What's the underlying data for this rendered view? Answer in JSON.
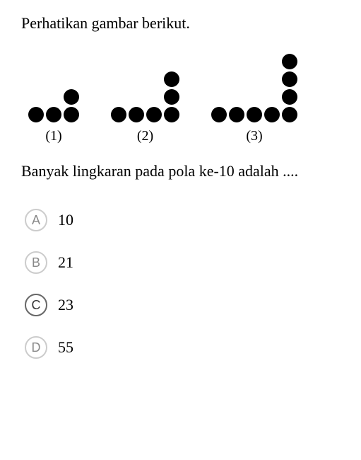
{
  "question": {
    "intro": "Perhatikan gambar berikut.",
    "statement": "Banyak lingkaran pada pola ke-10 adalah ...."
  },
  "patterns": [
    {
      "label": "(1)",
      "horizontal": 2,
      "vertical": 1
    },
    {
      "label": "(2)",
      "horizontal": 3,
      "vertical": 2
    },
    {
      "label": "(3)",
      "horizontal": 4,
      "vertical": 3
    }
  ],
  "dot_color": "#000000",
  "dot_size": 22,
  "options": [
    {
      "letter": "A",
      "text": "10",
      "selected": false
    },
    {
      "letter": "B",
      "text": "21",
      "selected": false
    },
    {
      "letter": "C",
      "text": "23",
      "selected": true
    },
    {
      "letter": "D",
      "text": "55",
      "selected": false
    }
  ]
}
